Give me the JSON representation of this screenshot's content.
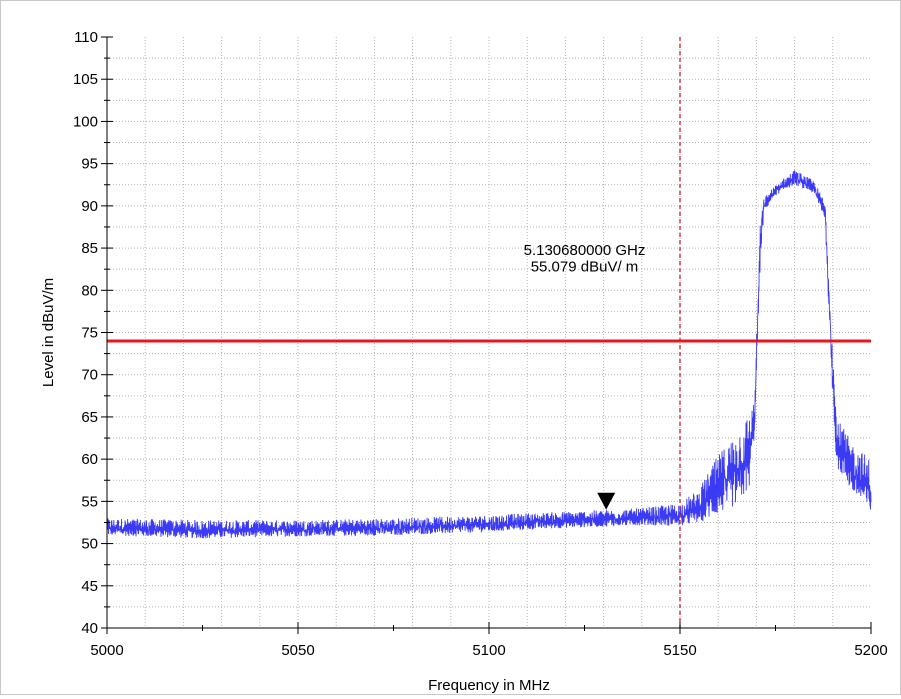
{
  "chart_data": {
    "type": "line",
    "xlabel": "Frequency in MHz",
    "ylabel": "Level in dBuV/m",
    "xlim": [
      5000,
      5200
    ],
    "ylim": [
      40,
      110
    ],
    "x_ticks": [
      "5000",
      "5050",
      "5100",
      "5150",
      "5200"
    ],
    "y_ticks": [
      "40",
      "45",
      "50",
      "55",
      "60",
      "65",
      "70",
      "75",
      "80",
      "85",
      "90",
      "95",
      "100",
      "105",
      "110"
    ],
    "grid": true,
    "limit_line": {
      "value": 74,
      "color": "#e8171c"
    },
    "band_edge": {
      "x": 5150,
      "color": "#d42020",
      "style": "dashed"
    },
    "series": [
      {
        "color": "#3b3bf5",
        "envelope": [
          {
            "x": 5000,
            "lo": 50.6,
            "hi": 53.0
          },
          {
            "x": 5025,
            "lo": 50.2,
            "hi": 52.8
          },
          {
            "x": 5050,
            "lo": 50.5,
            "hi": 52.8
          },
          {
            "x": 5075,
            "lo": 50.6,
            "hi": 53.0
          },
          {
            "x": 5100,
            "lo": 51.0,
            "hi": 53.4
          },
          {
            "x": 5120,
            "lo": 51.5,
            "hi": 53.8
          },
          {
            "x": 5140,
            "lo": 51.8,
            "hi": 54.2
          },
          {
            "x": 5150,
            "lo": 51.6,
            "hi": 54.8
          },
          {
            "x": 5155,
            "lo": 51.7,
            "hi": 56.5
          },
          {
            "x": 5160,
            "lo": 52.2,
            "hi": 60.5
          },
          {
            "x": 5165,
            "lo": 53.0,
            "hi": 63.5
          },
          {
            "x": 5168,
            "lo": 54.5,
            "hi": 65.5
          },
          {
            "x": 5169.5,
            "lo": 62.0,
            "hi": 67.0
          },
          {
            "x": 5171,
            "lo": 82.0,
            "hi": 88.0
          },
          {
            "x": 5172,
            "lo": 89.0,
            "hi": 91.0
          },
          {
            "x": 5175,
            "lo": 91.0,
            "hi": 92.5
          },
          {
            "x": 5180,
            "lo": 92.2,
            "hi": 94.3
          },
          {
            "x": 5185,
            "lo": 91.2,
            "hi": 93.0
          },
          {
            "x": 5188,
            "lo": 88.0,
            "hi": 90.5
          },
          {
            "x": 5189.5,
            "lo": 70.0,
            "hi": 78.0
          },
          {
            "x": 5191,
            "lo": 58.0,
            "hi": 65.0
          },
          {
            "x": 5195,
            "lo": 55.0,
            "hi": 62.0
          },
          {
            "x": 5200,
            "lo": 52.0,
            "hi": 60.0
          }
        ]
      }
    ],
    "marker": {
      "x": 5130.68,
      "y": 55.079,
      "label_line1": "5.130680000 GHz",
      "label_line2": "55.079 dBuV/ m"
    }
  }
}
